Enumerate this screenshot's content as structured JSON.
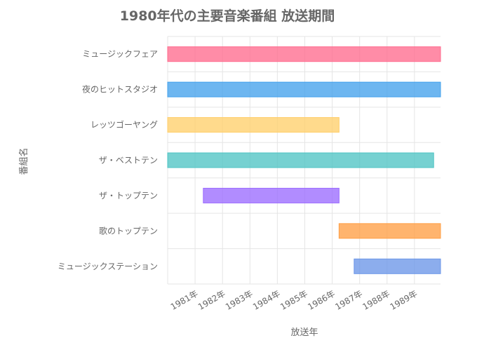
{
  "chart_data": {
    "type": "bar",
    "orientation": "horizontal-range",
    "title": "1980年代の主要音楽番組 放送期間",
    "xlabel": "放送年",
    "ylabel": "番組名",
    "xlim": [
      1980.0,
      1989.95
    ],
    "x_ticks": [
      "1981年",
      "1982年",
      "1983年",
      "1984年",
      "1985年",
      "1986年",
      "1987年",
      "1988年",
      "1989年"
    ],
    "grid": true,
    "legend": "none",
    "categories": [
      "ミュージックフェア",
      "夜のヒットスタジオ",
      "レッツゴーヤング",
      "ザ・ベストテン",
      "ザ・トップテン",
      "歌のトップテン",
      "ミュージックステーション"
    ],
    "series": [
      {
        "values": [
          [
            1980.0,
            1989.95
          ],
          [
            1980.0,
            1989.95
          ],
          [
            1980.0,
            1986.25
          ],
          [
            1980.0,
            1989.7
          ],
          [
            1981.3,
            1986.25
          ],
          [
            1986.25,
            1989.95
          ],
          [
            1986.8,
            1989.95
          ]
        ]
      }
    ],
    "colors": [
      "#ff6b8e",
      "#44a2ec",
      "#ffcf6b",
      "#4fc4c4",
      "#9b6bff",
      "#ff9f45",
      "#6b96e8"
    ]
  }
}
